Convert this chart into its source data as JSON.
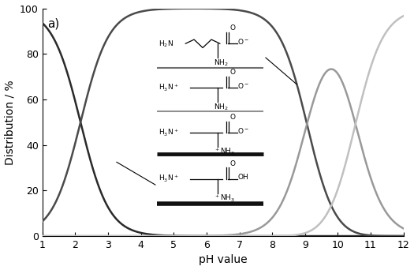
{
  "title": "a)",
  "xlabel": "pH value",
  "ylabel": "Distribution / %",
  "xlim": [
    1,
    12
  ],
  "ylim": [
    0,
    100
  ],
  "xticks": [
    1,
    2,
    3,
    4,
    5,
    6,
    7,
    8,
    9,
    10,
    11,
    12
  ],
  "yticks": [
    0,
    20,
    40,
    60,
    80,
    100
  ],
  "pKa1": 2.16,
  "pKa2": 9.06,
  "pKa3": 10.54,
  "curve_colors": [
    "#2a2a2a",
    "#4a4a4a",
    "#999999",
    "#c0c0c0"
  ],
  "curve_linewidths": [
    1.8,
    1.8,
    1.8,
    1.8
  ],
  "background_color": "#ffffff",
  "sep_line1_color": "#707070",
  "sep_line2_color": "#909090",
  "sep_line3_color": "#111111",
  "sep_line4_color": "#111111",
  "sep_line1_lw": 1.5,
  "sep_line2_lw": 1.5,
  "sep_line3_lw": 3.5,
  "sep_line4_lw": 4.0
}
